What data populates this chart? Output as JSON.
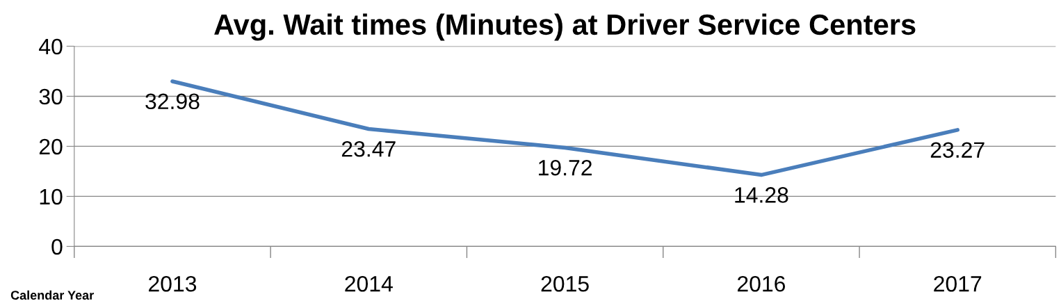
{
  "chart_data": {
    "type": "line",
    "title": "Avg. Wait times (Minutes) at Driver Service Centers",
    "xlabel": "Calendar Year",
    "categories": [
      "2013",
      "2014",
      "2015",
      "2016",
      "2017"
    ],
    "series": [
      {
        "color": "#4a7ebb",
        "values": [
          32.98,
          23.47,
          19.72,
          14.28,
          23.27
        ]
      }
    ],
    "ylim": [
      0,
      40
    ],
    "yticks": [
      0,
      10,
      20,
      30,
      40
    ],
    "grid": "y",
    "data_labels": true,
    "marker": "none",
    "line_style": "solid",
    "legend": false
  }
}
